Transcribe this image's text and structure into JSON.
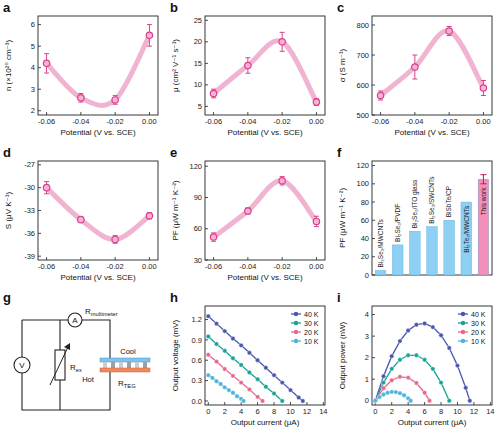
{
  "chart_data": [
    {
      "panel": "a",
      "type": "line",
      "line_style": "smooth",
      "marker": "circle",
      "color": "#d9418c",
      "x": [
        -0.06,
        -0.04,
        -0.02,
        0
      ],
      "values": [
        4.2,
        2.6,
        2.5,
        5.5
      ],
      "errors": [
        0.45,
        0.2,
        0.2,
        0.5
      ],
      "x_label": "Potential (V vs. SCE)",
      "y_label": "n (×10²⁰ cm⁻³)",
      "xlim": [
        -0.065,
        0.005
      ],
      "xticks": [
        -0.06,
        -0.04,
        -0.02,
        {
          "value": 0,
          "label": "0.00"
        }
      ],
      "ylim": [
        1.8,
        6.4
      ],
      "yticks": [
        2,
        3,
        4,
        5,
        6
      ]
    },
    {
      "panel": "b",
      "type": "line",
      "line_style": "smooth",
      "marker": "circle",
      "color": "#d9418c",
      "x": [
        -0.06,
        -0.04,
        -0.02,
        0
      ],
      "values": [
        8,
        14.5,
        20,
        6
      ],
      "errors": [
        1,
        1.8,
        2.2,
        0.8
      ],
      "x_label": "Potential (V vs. SCE)",
      "y_label": "μ (cm² V⁻¹ s⁻¹)",
      "xlim": [
        -0.065,
        0.005
      ],
      "xticks": [
        -0.06,
        -0.04,
        -0.02,
        {
          "value": 0,
          "label": "0.00"
        }
      ],
      "ylim": [
        3,
        26
      ],
      "yticks": [
        5,
        10,
        15,
        20,
        25
      ]
    },
    {
      "panel": "c",
      "type": "line",
      "line_style": "smooth",
      "marker": "circle",
      "color": "#d9418c",
      "x": [
        -0.06,
        -0.04,
        -0.02,
        0
      ],
      "values": [
        565,
        660,
        780,
        590
      ],
      "errors": [
        15,
        40,
        15,
        25
      ],
      "x_label": "Potential (V vs. SCE)",
      "y_label": "σ (S m⁻¹)",
      "xlim": [
        -0.065,
        0.005
      ],
      "xticks": [
        -0.06,
        -0.04,
        -0.02,
        {
          "value": 0,
          "label": "0.00"
        }
      ],
      "ylim": [
        500,
        830
      ],
      "yticks": [
        500,
        600,
        700,
        800
      ]
    },
    {
      "panel": "d",
      "type": "line",
      "line_style": "smooth",
      "marker": "circle",
      "color": "#d9418c",
      "x": [
        -0.06,
        -0.04,
        -0.02,
        0
      ],
      "values": [
        -30,
        -34.2,
        -36.8,
        -33.7
      ],
      "errors": [
        0.8,
        0.3,
        0.5,
        0.4
      ],
      "x_label": "Potential (V vs. SCE)",
      "y_label": "S (μV K⁻¹)",
      "xlim": [
        -0.065,
        0.005
      ],
      "xticks": [
        -0.06,
        -0.04,
        -0.02,
        {
          "value": 0,
          "label": "0.00"
        }
      ],
      "ylim": [
        -39.5,
        -26.5
      ],
      "yticks": [
        -39,
        -36,
        -33,
        -30,
        -27
      ]
    },
    {
      "panel": "e",
      "type": "line",
      "line_style": "smooth",
      "marker": "circle",
      "color": "#d9418c",
      "x": [
        -0.06,
        -0.04,
        -0.02,
        0
      ],
      "values": [
        52,
        77,
        106,
        67
      ],
      "errors": [
        4,
        3,
        4,
        5
      ],
      "x_label": "Potential (V vs. SCE)",
      "y_label": "PF (μW m⁻¹ K⁻²)",
      "xlim": [
        -0.065,
        0.005
      ],
      "xticks": [
        -0.06,
        -0.04,
        -0.02,
        {
          "value": 0,
          "label": "0.00"
        }
      ],
      "ylim": [
        30,
        125
      ],
      "yticks": [
        30,
        60,
        90,
        120
      ]
    },
    {
      "panel": "f",
      "type": "bar",
      "tick_labels": "y",
      "categories": [
        "Bi₂Se₃/MWCNTs",
        "Bi₂Se₃/PVDF",
        "Bi₂Se₃/ITO glass",
        "Bi₂Se₃/SWCNTs",
        "BiSbTe/CP",
        "Bi₂Te₃/MWCNTs",
        "This work"
      ],
      "values": [
        5,
        33,
        48,
        53,
        60,
        80,
        105
      ],
      "errors": [
        null,
        null,
        null,
        null,
        null,
        null,
        5
      ],
      "colors": [
        "#8dd0f3",
        "#8dd0f3",
        "#8dd0f3",
        "#8dd0f3",
        "#8dd0f3",
        "#8dd0f3",
        "#f48fb8"
      ],
      "y_label": "PF (μW m⁻¹ K⁻²)",
      "ylim": [
        0,
        125
      ],
      "yticks": [
        0,
        20,
        40,
        60,
        80,
        100,
        120
      ]
    },
    {
      "panel": "g",
      "type": "diagram",
      "labels": {
        "ammeter": "A",
        "voltmeter": "V",
        "r_multimeter": {
          "main": "R",
          "sub": "multimeter"
        },
        "r_ex": {
          "main": "R",
          "sub": "ex"
        },
        "cool": "Cool",
        "hot": "Hot",
        "r_teg": {
          "main": "R",
          "sub": "TEG"
        }
      }
    },
    {
      "panel": "h",
      "type": "line",
      "marker": "circle",
      "line_style": "solid",
      "legend": "upper right",
      "x_label": "Output current (μA)",
      "y_label": "Output voltage (mV)",
      "xlim": [
        -0.4,
        14.2
      ],
      "xticks": [
        0,
        2,
        4,
        6,
        8,
        10,
        12,
        14
      ],
      "ylim": [
        -0.06,
        1.4
      ],
      "yticks": [
        {
          "value": 0,
          "label": "0.0"
        },
        0.3,
        0.6,
        0.9,
        1.2
      ],
      "series": [
        {
          "name": "40 K",
          "color": "#4a56b0",
          "x": [
            0,
            1,
            2,
            3,
            4,
            5,
            6,
            7,
            8,
            9,
            10,
            11,
            11.5
          ],
          "values": [
            1.25,
            1.14,
            1.03,
            0.92,
            0.82,
            0.71,
            0.6,
            0.49,
            0.38,
            0.27,
            0.16,
            0.05,
            0
          ]
        },
        {
          "name": "30 K",
          "color": "#17a398",
          "x": [
            0,
            1,
            2,
            3,
            4,
            5,
            6,
            7,
            8,
            9
          ],
          "values": [
            0.95,
            0.84,
            0.74,
            0.63,
            0.53,
            0.42,
            0.32,
            0.21,
            0.11,
            0
          ]
        },
        {
          "name": "20 K",
          "color": "#e8678a",
          "x": [
            0,
            1,
            2,
            3,
            4,
            5,
            6,
            6.6
          ],
          "values": [
            0.68,
            0.58,
            0.47,
            0.37,
            0.27,
            0.17,
            0.06,
            0
          ]
        },
        {
          "name": "10 K",
          "color": "#4fb3dc",
          "x": [
            0,
            0.5,
            1,
            1.5,
            2,
            2.5,
            3,
            3.5,
            4,
            4.3
          ],
          "values": [
            0.38,
            0.34,
            0.29,
            0.25,
            0.2,
            0.16,
            0.12,
            0.07,
            0.03,
            0
          ]
        }
      ]
    },
    {
      "panel": "i",
      "type": "line",
      "marker": "circle",
      "line_style": "solid",
      "legend": "upper right",
      "x_label": "Output current (μA)",
      "y_label": "Output power (nW)",
      "xlim": [
        -0.4,
        14.2
      ],
      "xticks": [
        0,
        2,
        4,
        6,
        8,
        10,
        12,
        14
      ],
      "ylim": [
        -0.2,
        4.4
      ],
      "yticks": [
        0,
        1,
        2,
        3,
        4
      ],
      "series": [
        {
          "name": "40 K",
          "color": "#4a56b0",
          "x": [
            0,
            1,
            2,
            3,
            4,
            5,
            6,
            7,
            8,
            9,
            10,
            11,
            11.5
          ],
          "values": [
            0,
            1.14,
            2.07,
            2.77,
            3.26,
            3.53,
            3.59,
            3.42,
            3.04,
            2.45,
            1.63,
            0.6,
            0
          ]
        },
        {
          "name": "30 K",
          "color": "#17a398",
          "x": [
            0,
            1,
            2,
            3,
            4,
            5,
            6,
            7,
            8,
            9
          ],
          "values": [
            0,
            0.84,
            1.48,
            1.9,
            2.11,
            2.11,
            1.9,
            1.48,
            0.84,
            0
          ]
        },
        {
          "name": "20 K",
          "color": "#e8678a",
          "x": [
            0,
            1,
            2,
            3,
            4,
            5,
            6,
            6.6
          ],
          "values": [
            0,
            0.58,
            0.95,
            1.11,
            1.07,
            0.82,
            0.37,
            0
          ]
        },
        {
          "name": "10 K",
          "color": "#4fb3dc",
          "x": [
            0,
            0.5,
            1,
            1.5,
            2,
            2.5,
            3,
            3.5,
            4,
            4.3
          ],
          "values": [
            0,
            0.17,
            0.29,
            0.37,
            0.41,
            0.4,
            0.35,
            0.25,
            0.11,
            0
          ]
        }
      ]
    }
  ]
}
